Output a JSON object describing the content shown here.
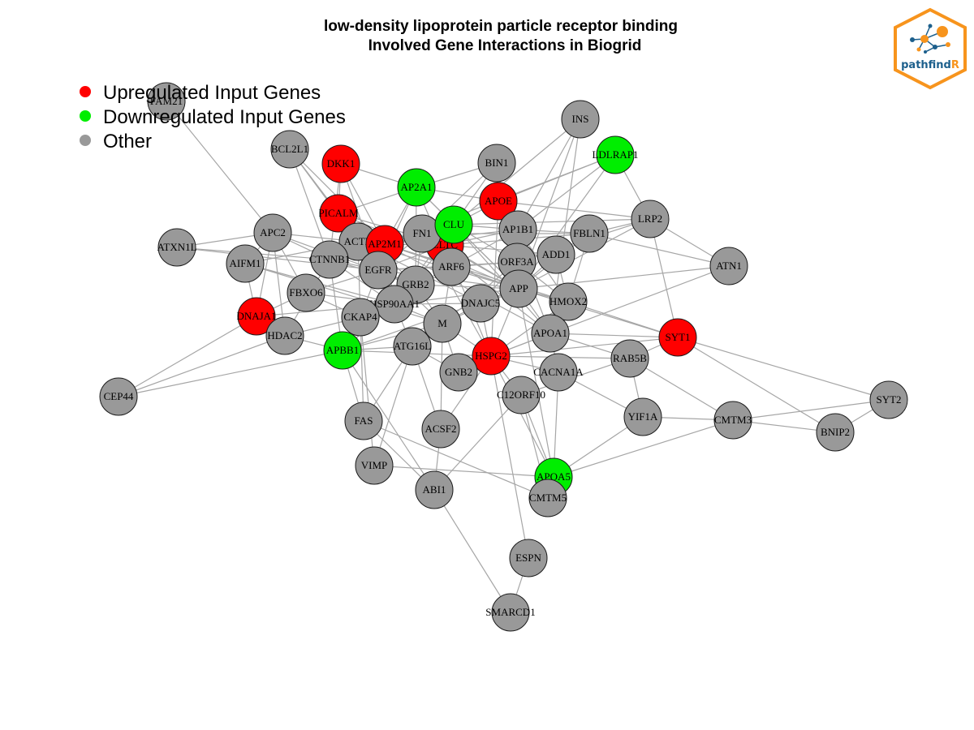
{
  "title": {
    "line1": "low-density lipoprotein particle receptor binding",
    "line2": "Involved Gene Interactions in Biogrid"
  },
  "legend": [
    {
      "label": "Upregulated Input Genes",
      "color": "#ff0000"
    },
    {
      "label": "Downregulated Input Genes",
      "color": "#00ee00"
    },
    {
      "label": "Other",
      "color": "#999999"
    }
  ],
  "logo": {
    "text_main": "pathfind",
    "text_accent": "R",
    "border_color": "#f7941d",
    "main_color": "#1c5f8c"
  },
  "colors": {
    "up": "#ff0000",
    "down": "#00ee00",
    "other": "#999999",
    "edge": "#a6a6a6"
  },
  "nodes": [
    {
      "id": "FAM21",
      "label": "FAM21",
      "group": "other"
    },
    {
      "id": "BCL2L1",
      "label": "BCL2L1",
      "group": "other"
    },
    {
      "id": "DKK1",
      "label": "DKK1",
      "group": "up"
    },
    {
      "id": "AP2A1",
      "label": "AP2A1",
      "group": "down"
    },
    {
      "id": "BIN1",
      "label": "BIN1",
      "group": "other"
    },
    {
      "id": "INS",
      "label": "INS",
      "group": "other"
    },
    {
      "id": "LDLRAP1",
      "label": "LDLRAP1",
      "group": "down"
    },
    {
      "id": "APOE",
      "label": "APOE",
      "group": "up"
    },
    {
      "id": "PICALM",
      "label": "PICALM",
      "group": "up"
    },
    {
      "id": "APC2",
      "label": "APC2",
      "group": "other"
    },
    {
      "id": "ATXN1L",
      "label": "ATXN1L",
      "group": "other"
    },
    {
      "id": "AIFM1",
      "label": "AIFM1",
      "group": "other"
    },
    {
      "id": "ACTB",
      "label": "ACTB",
      "group": "other"
    },
    {
      "id": "AP2M1",
      "label": "AP2M1",
      "group": "up"
    },
    {
      "id": "CLTC",
      "label": "CLTC",
      "group": "up"
    },
    {
      "id": "FN1",
      "label": "FN1",
      "group": "other"
    },
    {
      "id": "CLU",
      "label": "CLU",
      "group": "down"
    },
    {
      "id": "AP1B1",
      "label": "AP1B1",
      "group": "other"
    },
    {
      "id": "FBLN1",
      "label": "FBLN1",
      "group": "other"
    },
    {
      "id": "LRP2",
      "label": "LRP2",
      "group": "other"
    },
    {
      "id": "ATN1",
      "label": "ATN1",
      "group": "other"
    },
    {
      "id": "CTNNB1",
      "label": "CTNNB1",
      "group": "other"
    },
    {
      "id": "EGFR",
      "label": "EGFR",
      "group": "other"
    },
    {
      "id": "ARF6",
      "label": "ARF6",
      "group": "other"
    },
    {
      "id": "ORF3A",
      "label": "ORF3A",
      "group": "other"
    },
    {
      "id": "ADD1",
      "label": "ADD1",
      "group": "other"
    },
    {
      "id": "FBXO6",
      "label": "FBXO6",
      "group": "other"
    },
    {
      "id": "GRB2",
      "label": "GRB2",
      "group": "other"
    },
    {
      "id": "APP",
      "label": "APP",
      "group": "other"
    },
    {
      "id": "DNAJA1",
      "label": "DNAJA1",
      "group": "up"
    },
    {
      "id": "HSP90AA1",
      "label": "HSP90AA1",
      "group": "other"
    },
    {
      "id": "DNAJC5",
      "label": "DNAJC5",
      "group": "other"
    },
    {
      "id": "HMOX2",
      "label": "HMOX2",
      "group": "other"
    },
    {
      "id": "CKAP4",
      "label": "CKAP4",
      "group": "other"
    },
    {
      "id": "HDAC2",
      "label": "HDAC2",
      "group": "other"
    },
    {
      "id": "M",
      "label": "M",
      "group": "other"
    },
    {
      "id": "APOA1",
      "label": "APOA1",
      "group": "other"
    },
    {
      "id": "SYT1",
      "label": "SYT1",
      "group": "up"
    },
    {
      "id": "APBB1",
      "label": "APBB1",
      "group": "down"
    },
    {
      "id": "ATG16L",
      "label": "ATG16L",
      "group": "other"
    },
    {
      "id": "HSPG2",
      "label": "HSPG2",
      "group": "up"
    },
    {
      "id": "RAB5B",
      "label": "RAB5B",
      "group": "other"
    },
    {
      "id": "GNB2",
      "label": "GNB2",
      "group": "other"
    },
    {
      "id": "CACNA1A",
      "label": "CACNA1A",
      "group": "other"
    },
    {
      "id": "CEP44",
      "label": "CEP44",
      "group": "other"
    },
    {
      "id": "C12ORF10",
      "label": "C12ORF10",
      "group": "other"
    },
    {
      "id": "SYT2",
      "label": "SYT2",
      "group": "other"
    },
    {
      "id": "FAS",
      "label": "FAS",
      "group": "other"
    },
    {
      "id": "YIF1A",
      "label": "YIF1A",
      "group": "other"
    },
    {
      "id": "CMTM3",
      "label": "CMTM3",
      "group": "other"
    },
    {
      "id": "BNIP2",
      "label": "BNIP2",
      "group": "other"
    },
    {
      "id": "ACSF2",
      "label": "ACSF2",
      "group": "other"
    },
    {
      "id": "VIMP",
      "label": "VIMP",
      "group": "other"
    },
    {
      "id": "APOA5",
      "label": "APOA5",
      "group": "down"
    },
    {
      "id": "ABI1",
      "label": "ABI1",
      "group": "other"
    },
    {
      "id": "CMTM5",
      "label": "CMTM5",
      "group": "other"
    },
    {
      "id": "ESPN",
      "label": "ESPN",
      "group": "other"
    },
    {
      "id": "SMARCD1",
      "label": "SMARCD1",
      "group": "other"
    }
  ],
  "edges": [
    [
      "FAM21",
      "APC2"
    ],
    [
      "BCL2L1",
      "PICALM"
    ],
    [
      "BCL2L1",
      "ACTB"
    ],
    [
      "BCL2L1",
      "CTNNB1"
    ],
    [
      "BCL2L1",
      "AP2M1"
    ],
    [
      "DKK1",
      "AP2A1"
    ],
    [
      "DKK1",
      "CTNNB1"
    ],
    [
      "DKK1",
      "PICALM"
    ],
    [
      "DKK1",
      "AP2M1"
    ],
    [
      "DKK1",
      "EGFR"
    ],
    [
      "AP2A1",
      "BIN1"
    ],
    [
      "AP2A1",
      "APOE"
    ],
    [
      "AP2A1",
      "CLU"
    ],
    [
      "AP2A1",
      "PICALM"
    ],
    [
      "AP2A1",
      "EGFR"
    ],
    [
      "AP2A1",
      "AP2M1"
    ],
    [
      "AP2A1",
      "ARF6"
    ],
    [
      "AP2A1",
      "GRB2"
    ],
    [
      "AP2A1",
      "APP"
    ],
    [
      "BIN1",
      "FN1"
    ],
    [
      "BIN1",
      "APOE"
    ],
    [
      "BIN1",
      "CLU"
    ],
    [
      "BIN1",
      "APP"
    ],
    [
      "INS",
      "AP1B1"
    ],
    [
      "INS",
      "CLU"
    ],
    [
      "INS",
      "APOA1"
    ],
    [
      "INS",
      "APP"
    ],
    [
      "LDLRAP1",
      "AP1B1"
    ],
    [
      "LDLRAP1",
      "LRP2"
    ],
    [
      "LDLRAP1",
      "APP"
    ],
    [
      "LDLRAP1",
      "AP2M1"
    ],
    [
      "LDLRAP1",
      "APOE"
    ],
    [
      "APOE",
      "APP"
    ],
    [
      "APOE",
      "CLU"
    ],
    [
      "APOE",
      "HSPG2"
    ],
    [
      "APOE",
      "LRP2"
    ],
    [
      "APOE",
      "APOA1"
    ],
    [
      "APOE",
      "HMOX2"
    ],
    [
      "APOE",
      "ORF3A"
    ],
    [
      "PICALM",
      "APP"
    ],
    [
      "PICALM",
      "CLTC"
    ],
    [
      "PICALM",
      "AP2M1"
    ],
    [
      "PICALM",
      "ACTB"
    ],
    [
      "PICALM",
      "GRB2"
    ],
    [
      "PICALM",
      "EGFR"
    ],
    [
      "APC2",
      "CTNNB1"
    ],
    [
      "APC2",
      "AIFM1"
    ],
    [
      "APC2",
      "ATXN1L"
    ],
    [
      "APC2",
      "DNAJA1"
    ],
    [
      "APC2",
      "ACTB"
    ],
    [
      "APC2",
      "HDAC2"
    ],
    [
      "APC2",
      "GRB2"
    ],
    [
      "APC2",
      "FBXO6"
    ],
    [
      "ATXN1L",
      "CTNNB1"
    ],
    [
      "ATXN1L",
      "EGFR"
    ],
    [
      "AIFM1",
      "DNAJA1"
    ],
    [
      "AIFM1",
      "M"
    ],
    [
      "AIFM1",
      "ACTB"
    ],
    [
      "AIFM1",
      "HSP90AA1"
    ],
    [
      "ACTB",
      "CTNNB1"
    ],
    [
      "ACTB",
      "EGFR"
    ],
    [
      "ACTB",
      "APP"
    ],
    [
      "ACTB",
      "CKAP4"
    ],
    [
      "ACTB",
      "HSP90AA1"
    ],
    [
      "ACTB",
      "FN1"
    ],
    [
      "ACTB",
      "M"
    ],
    [
      "ACTB",
      "DNAJC5"
    ],
    [
      "AP2M1",
      "CLTC"
    ],
    [
      "AP2M1",
      "EGFR"
    ],
    [
      "AP2M1",
      "APP"
    ],
    [
      "AP2M1",
      "HSP90AA1"
    ],
    [
      "AP2M1",
      "ARF6"
    ],
    [
      "AP2M1",
      "AP1B1"
    ],
    [
      "AP2M1",
      "HMOX2"
    ],
    [
      "AP2M1",
      "APOA1"
    ],
    [
      "CLTC",
      "APP"
    ],
    [
      "CLTC",
      "EGFR"
    ],
    [
      "CLTC",
      "AP1B1"
    ],
    [
      "CLTC",
      "ARF6"
    ],
    [
      "CLTC",
      "HSPG2"
    ],
    [
      "CLTC",
      "FBLN1"
    ],
    [
      "CLTC",
      "ADD1"
    ],
    [
      "CLTC",
      "HSP90AA1"
    ],
    [
      "FN1",
      "EGFR"
    ],
    [
      "FN1",
      "APP"
    ],
    [
      "FN1",
      "HSPG2"
    ],
    [
      "FN1",
      "FBLN1"
    ],
    [
      "FN1",
      "CTNNB1"
    ],
    [
      "FN1",
      "APOA1"
    ],
    [
      "FN1",
      "GRB2"
    ],
    [
      "CLU",
      "APP"
    ],
    [
      "CLU",
      "APOA1"
    ],
    [
      "CLU",
      "AP1B1"
    ],
    [
      "CLU",
      "ORF3A"
    ],
    [
      "CLU",
      "HSP90AA1"
    ],
    [
      "CLU",
      "LRP2"
    ],
    [
      "AP1B1",
      "APP"
    ],
    [
      "AP1B1",
      "FBLN1"
    ],
    [
      "AP1B1",
      "ARF6"
    ],
    [
      "FBLN1",
      "LRP2"
    ],
    [
      "FBLN1",
      "APP"
    ],
    [
      "FBLN1",
      "ATN1"
    ],
    [
      "FBLN1",
      "HMOX2"
    ],
    [
      "LRP2",
      "ATN1"
    ],
    [
      "LRP2",
      "SYT1"
    ],
    [
      "LRP2",
      "APP"
    ],
    [
      "LRP2",
      "ORF3A"
    ],
    [
      "ATN1",
      "APP"
    ],
    [
      "ATN1",
      "HSPG2"
    ],
    [
      "CTNNB1",
      "EGFR"
    ],
    [
      "CTNNB1",
      "HDAC2"
    ],
    [
      "CTNNB1",
      "GRB2"
    ],
    [
      "CTNNB1",
      "HSP90AA1"
    ],
    [
      "CTNNB1",
      "APBB1"
    ],
    [
      "EGFR",
      "GRB2"
    ],
    [
      "EGFR",
      "HSP90AA1"
    ],
    [
      "EGFR",
      "APP"
    ],
    [
      "EGFR",
      "CKAP4"
    ],
    [
      "EGFR",
      "ARF6"
    ],
    [
      "EGFR",
      "ORF3A"
    ],
    [
      "EGFR",
      "FBXO6"
    ],
    [
      "ARF6",
      "APP"
    ],
    [
      "ARF6",
      "GRB2"
    ],
    [
      "ARF6",
      "ORF3A"
    ],
    [
      "ARF6",
      "M"
    ],
    [
      "ORF3A",
      "APP"
    ],
    [
      "ORF3A",
      "DNAJC5"
    ],
    [
      "ORF3A",
      "HMOX2"
    ],
    [
      "ORF3A",
      "M"
    ],
    [
      "ADD1",
      "APP"
    ],
    [
      "ADD1",
      "HMOX2"
    ],
    [
      "FBXO6",
      "DNAJA1"
    ],
    [
      "FBXO6",
      "HSP90AA1"
    ],
    [
      "FBXO6",
      "CKAP4"
    ],
    [
      "GRB2",
      "HSP90AA1"
    ],
    [
      "GRB2",
      "M"
    ],
    [
      "GRB2",
      "APP"
    ],
    [
      "GRB2",
      "APBB1"
    ],
    [
      "APP",
      "APBB1"
    ],
    [
      "APP",
      "APOA1"
    ],
    [
      "APP",
      "HMOX2"
    ],
    [
      "APP",
      "DNAJC5"
    ],
    [
      "APP",
      "HSPG2"
    ],
    [
      "APP",
      "M"
    ],
    [
      "APP",
      "SYT1"
    ],
    [
      "APP",
      "APOA5"
    ],
    [
      "APP",
      "HSP90AA1"
    ],
    [
      "DNAJA1",
      "HSP90AA1"
    ],
    [
      "DNAJA1",
      "CEP44"
    ],
    [
      "DNAJA1",
      "HDAC2"
    ],
    [
      "HSP90AA1",
      "M"
    ],
    [
      "HSP90AA1",
      "CKAP4"
    ],
    [
      "HSP90AA1",
      "ATG16L"
    ],
    [
      "HSP90AA1",
      "DNAJC5"
    ],
    [
      "DNAJC5",
      "M"
    ],
    [
      "DNAJC5",
      "HSPG2"
    ],
    [
      "HMOX2",
      "SYT1"
    ],
    [
      "HMOX2",
      "HSPG2"
    ],
    [
      "HMOX2",
      "APOA1"
    ],
    [
      "CKAP4",
      "HDAC2"
    ],
    [
      "CKAP4",
      "APBB1"
    ],
    [
      "CKAP4",
      "FAS"
    ],
    [
      "CKAP4",
      "VIMP"
    ],
    [
      "HDAC2",
      "CEP44"
    ],
    [
      "HDAC2",
      "APBB1"
    ],
    [
      "M",
      "ATG16L"
    ],
    [
      "M",
      "GNB2"
    ],
    [
      "M",
      "HSPG2"
    ],
    [
      "M",
      "ACSF2"
    ],
    [
      "M",
      "APBB1"
    ],
    [
      "APOA1",
      "HSPG2"
    ],
    [
      "APOA1",
      "SYT1"
    ],
    [
      "APOA1",
      "CACNA1A"
    ],
    [
      "APOA1",
      "RAB5B"
    ],
    [
      "SYT1",
      "RAB5B"
    ],
    [
      "SYT1",
      "SYT2"
    ],
    [
      "SYT1",
      "BNIP2"
    ],
    [
      "SYT1",
      "HSPG2"
    ],
    [
      "APBB1",
      "CEP44"
    ],
    [
      "APBB1",
      "ATG16L"
    ],
    [
      "APBB1",
      "FAS"
    ],
    [
      "APBB1",
      "ABI1"
    ],
    [
      "APBB1",
      "HSPG2"
    ],
    [
      "ATG16L",
      "FAS"
    ],
    [
      "ATG16L",
      "ACSF2"
    ],
    [
      "ATG16L",
      "VIMP"
    ],
    [
      "ATG16L",
      "GNB2"
    ],
    [
      "HSPG2",
      "GNB2"
    ],
    [
      "HSPG2",
      "CACNA1A"
    ],
    [
      "HSPG2",
      "C12ORF10"
    ],
    [
      "HSPG2",
      "RAB5B"
    ],
    [
      "HSPG2",
      "ESPN"
    ],
    [
      "HSPG2",
      "APOA5"
    ],
    [
      "HSPG2",
      "ACSF2"
    ],
    [
      "RAB5B",
      "CMTM3"
    ],
    [
      "RAB5B",
      "YIF1A"
    ],
    [
      "RAB5B",
      "C12ORF10"
    ],
    [
      "CACNA1A",
      "YIF1A"
    ],
    [
      "CACNA1A",
      "APOA5"
    ],
    [
      "C12ORF10",
      "CMTM5"
    ],
    [
      "C12ORF10",
      "APOA5"
    ],
    [
      "C12ORF10",
      "ABI1"
    ],
    [
      "YIF1A",
      "CMTM3"
    ],
    [
      "YIF1A",
      "APOA5"
    ],
    [
      "CMTM3",
      "SYT2"
    ],
    [
      "CMTM3",
      "BNIP2"
    ],
    [
      "CMTM3",
      "APOA5"
    ],
    [
      "SYT2",
      "BNIP2"
    ],
    [
      "FAS",
      "ABI1"
    ],
    [
      "FAS",
      "CMTM5"
    ],
    [
      "ACSF2",
      "ABI1"
    ],
    [
      "VIMP",
      "APOA5"
    ],
    [
      "APOA5",
      "CMTM5"
    ],
    [
      "ESPN",
      "SMARCD1"
    ],
    [
      "ABI1",
      "SMARCD1"
    ]
  ]
}
